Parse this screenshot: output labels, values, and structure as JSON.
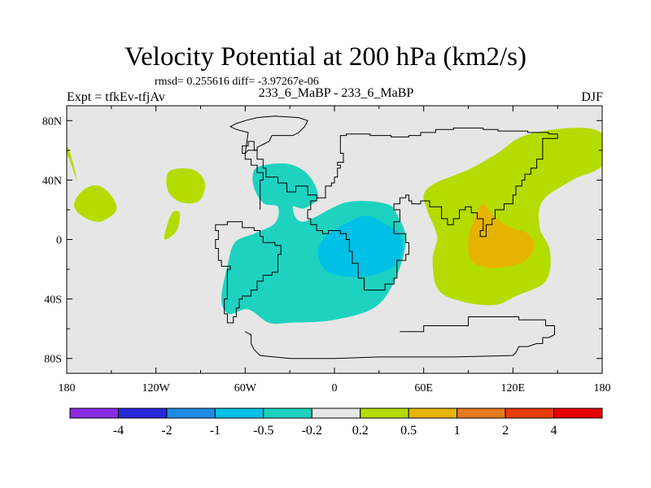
{
  "header": {
    "title": "Velocity Potential at 200 hPa (km2/s)",
    "stats": "rmsd= 0.255616 diff= -3.97267e-06",
    "expt": "Expt = tfkEv-tfjAv",
    "case": "233_6_MaBP - 233_6_MaBP",
    "season": "DJF"
  },
  "chart_data": {
    "type": "heatmap",
    "title": "Velocity Potential at 200 hPa (km2/s)",
    "xlabel": "",
    "ylabel": "",
    "x_range": [
      -180,
      180
    ],
    "y_range": [
      -90,
      90
    ],
    "x_ticks": [
      {
        "value": -180,
        "label": "180"
      },
      {
        "value": -120,
        "label": "120W"
      },
      {
        "value": -60,
        "label": "60W"
      },
      {
        "value": 0,
        "label": "0"
      },
      {
        "value": 60,
        "label": "60E"
      },
      {
        "value": 120,
        "label": "120E"
      },
      {
        "value": 180,
        "label": "180"
      }
    ],
    "y_ticks": [
      {
        "value": 80,
        "label": "80N"
      },
      {
        "value": 40,
        "label": "40N"
      },
      {
        "value": 0,
        "label": "0"
      },
      {
        "value": -40,
        "label": "40S"
      },
      {
        "value": -80,
        "label": "80S"
      }
    ],
    "background_color": "#e6e6e6",
    "colorbar": {
      "colors": [
        "#8b2be2",
        "#2828d8",
        "#1e8ce6",
        "#00c0e6",
        "#1ed2c0",
        "#e6e6e6",
        "#b4dc00",
        "#e6b400",
        "#e6781e",
        "#e63c0a",
        "#e60000"
      ],
      "labels": [
        "-4",
        "-2",
        "-1",
        "-0.5",
        "-0.2",
        "0.2",
        "0.5",
        "1",
        "2",
        "4"
      ]
    },
    "regions": [
      {
        "level": "0.2 to 0.5",
        "color": "#b4dc00",
        "points": [
          [
            -173,
            40
          ],
          [
            -179,
            62
          ],
          [
            -180,
            52
          ],
          [
            -180,
            58
          ]
        ]
      },
      {
        "level": "0.2 to 0.5",
        "color": "#b4dc00",
        "points": [
          [
            -168,
            34
          ],
          [
            -158,
            36
          ],
          [
            -149,
            28
          ],
          [
            -147,
            19
          ],
          [
            -158,
            12
          ],
          [
            -170,
            16
          ],
          [
            -175,
            24
          ]
        ]
      },
      {
        "level": "0.2 to 0.5",
        "color": "#b4dc00",
        "points": [
          [
            -111,
            46
          ],
          [
            -95,
            47
          ],
          [
            -87,
            38
          ],
          [
            -91,
            26
          ],
          [
            -103,
            25
          ],
          [
            -112,
            33
          ]
        ]
      },
      {
        "level": "0.2 to 0.5",
        "color": "#b4dc00",
        "points": [
          [
            -109,
            18
          ],
          [
            -104,
            18
          ],
          [
            -106,
            6
          ],
          [
            -114,
            0
          ],
          [
            -113,
            8
          ]
        ]
      },
      {
        "level": "0.2 to 0.5",
        "color": "#b4dc00",
        "points": [
          [
            128,
            70
          ],
          [
            160,
            75
          ],
          [
            180,
            71
          ],
          [
            180,
            50
          ],
          [
            160,
            40
          ],
          [
            140,
            26
          ],
          [
            138,
            8
          ],
          [
            145,
            -8
          ],
          [
            142,
            -28
          ],
          [
            122,
            -38
          ],
          [
            108,
            -44
          ],
          [
            87,
            -42
          ],
          [
            70,
            -34
          ],
          [
            66,
            -14
          ],
          [
            69,
            2
          ],
          [
            63,
            18
          ],
          [
            60,
            30
          ],
          [
            68,
            38
          ],
          [
            90,
            47
          ],
          [
            108,
            57
          ]
        ]
      },
      {
        "level": "0.5 to 1",
        "color": "#e6b400",
        "points": [
          [
            100,
            24
          ],
          [
            108,
            15
          ],
          [
            118,
            8
          ],
          [
            130,
            4
          ],
          [
            134,
            -6
          ],
          [
            125,
            -16
          ],
          [
            105,
            -19
          ],
          [
            92,
            -14
          ],
          [
            90,
            0
          ],
          [
            95,
            16
          ]
        ]
      },
      {
        "level": "-0.5 to -0.2",
        "color": "#1ed2c0",
        "points": [
          [
            -51,
            49
          ],
          [
            -32,
            51
          ],
          [
            -18,
            44
          ],
          [
            -11,
            29
          ],
          [
            -20,
            21
          ],
          [
            -28,
            22
          ],
          [
            -21,
            12
          ],
          [
            8,
            25
          ],
          [
            35,
            24
          ],
          [
            43,
            15
          ],
          [
            48,
            0
          ],
          [
            42,
            -24
          ],
          [
            28,
            -45
          ],
          [
            0,
            -54
          ],
          [
            -30,
            -56
          ],
          [
            -44,
            -56
          ],
          [
            -58,
            -47
          ],
          [
            -71,
            -50
          ],
          [
            -76,
            -40
          ],
          [
            -72,
            -18
          ],
          [
            -67,
            -2
          ],
          [
            -54,
            4
          ],
          [
            -40,
            11
          ],
          [
            -38,
            22
          ],
          [
            -47,
            24
          ],
          [
            -53,
            32
          ],
          [
            -55,
            42
          ]
        ]
      },
      {
        "level": "-1 to -0.5",
        "color": "#00c0e6",
        "points": [
          [
            10,
            12
          ],
          [
            22,
            16
          ],
          [
            35,
            10
          ],
          [
            45,
            2
          ],
          [
            44,
            -14
          ],
          [
            32,
            -22
          ],
          [
            15,
            -25
          ],
          [
            -4,
            -22
          ],
          [
            -11,
            -10
          ],
          [
            -6,
            2
          ]
        ]
      }
    ],
    "coastline": [
      [
        -50,
        20
      ],
      [
        -50,
        40
      ],
      [
        -48,
        40
      ],
      [
        -48,
        45
      ],
      [
        -52,
        45
      ],
      [
        -52,
        50
      ],
      [
        -56,
        50
      ],
      [
        -56,
        54
      ],
      [
        -60,
        54
      ],
      [
        -60,
        58
      ],
      [
        -62,
        58
      ],
      [
        -62,
        63
      ],
      [
        -58,
        63
      ],
      [
        -58,
        66
      ],
      [
        -54,
        66
      ],
      [
        -54,
        60
      ],
      [
        -52,
        60
      ],
      [
        -52,
        54
      ],
      [
        -48,
        54
      ],
      [
        -48,
        48
      ],
      [
        -46,
        48
      ],
      [
        -46,
        42
      ],
      [
        -38,
        42
      ],
      [
        -38,
        38
      ],
      [
        -32,
        38
      ],
      [
        -32,
        32
      ],
      [
        -26,
        32
      ],
      [
        -26,
        36
      ],
      [
        -18,
        36
      ],
      [
        -18,
        30
      ],
      [
        -12,
        30
      ],
      [
        -12,
        28
      ],
      [
        -6,
        28
      ],
      [
        -6,
        36
      ],
      [
        -2,
        36
      ],
      [
        -2,
        38
      ],
      [
        0,
        38
      ],
      [
        0,
        42
      ],
      [
        2,
        42
      ],
      [
        2,
        48
      ],
      [
        4,
        48
      ],
      [
        4,
        50
      ],
      [
        2,
        50
      ],
      [
        2,
        52
      ],
      [
        6,
        52
      ],
      [
        6,
        58
      ],
      [
        4,
        58
      ],
      [
        4,
        70
      ],
      [
        8,
        70
      ],
      [
        8,
        71
      ],
      [
        24,
        71
      ],
      [
        24,
        70
      ],
      [
        38,
        70
      ],
      [
        38,
        69
      ],
      [
        50,
        69
      ],
      [
        50,
        70
      ],
      [
        58,
        70
      ],
      [
        58,
        72
      ],
      [
        68,
        72
      ],
      [
        68,
        74
      ],
      [
        80,
        74
      ],
      [
        80,
        75
      ],
      [
        100,
        75
      ],
      [
        100,
        74
      ],
      [
        110,
        74
      ],
      [
        110,
        73
      ],
      [
        130,
        73
      ],
      [
        130,
        72
      ],
      [
        144,
        72
      ],
      [
        144,
        71
      ],
      [
        150,
        71
      ],
      [
        150,
        70
      ],
      [
        150,
        68
      ],
      [
        140,
        68
      ],
      [
        140,
        58
      ],
      [
        140,
        54
      ],
      [
        136,
        54
      ],
      [
        136,
        48
      ],
      [
        132,
        48
      ],
      [
        132,
        44
      ],
      [
        128,
        44
      ],
      [
        128,
        40
      ],
      [
        126,
        40
      ],
      [
        126,
        36
      ],
      [
        122,
        36
      ],
      [
        122,
        30
      ],
      [
        120,
        30
      ],
      [
        120,
        24
      ],
      [
        114,
        24
      ],
      [
        114,
        20
      ],
      [
        108,
        20
      ],
      [
        108,
        14
      ],
      [
        106,
        14
      ],
      [
        106,
        10
      ],
      [
        102,
        10
      ],
      [
        102,
        2
      ],
      [
        98,
        2
      ],
      [
        98,
        6
      ],
      [
        100,
        6
      ],
      [
        100,
        14
      ],
      [
        96,
        14
      ],
      [
        96,
        18
      ],
      [
        92,
        18
      ],
      [
        92,
        22
      ],
      [
        88,
        22
      ],
      [
        88,
        20
      ],
      [
        84,
        20
      ],
      [
        84,
        14
      ],
      [
        80,
        14
      ],
      [
        80,
        10
      ],
      [
        76,
        10
      ],
      [
        76,
        14
      ],
      [
        72,
        14
      ],
      [
        72,
        22
      ],
      [
        64,
        22
      ],
      [
        64,
        26
      ],
      [
        58,
        26
      ],
      [
        58,
        24
      ],
      [
        52,
        24
      ],
      [
        52,
        26
      ],
      [
        50,
        26
      ],
      [
        50,
        30
      ],
      [
        48,
        30
      ],
      [
        48,
        28
      ],
      [
        44,
        28
      ],
      [
        44,
        24
      ],
      [
        40,
        24
      ],
      [
        40,
        20
      ],
      [
        44,
        20
      ],
      [
        44,
        12
      ],
      [
        40,
        12
      ],
      [
        40,
        4
      ],
      [
        48,
        4
      ],
      [
        48,
        -2
      ],
      [
        50,
        -2
      ],
      [
        50,
        -4
      ],
      [
        50,
        -10
      ],
      [
        48,
        -10
      ],
      [
        48,
        -14
      ],
      [
        42,
        -14
      ],
      [
        42,
        -26
      ],
      [
        40,
        -26
      ],
      [
        40,
        -30
      ],
      [
        34,
        -30
      ],
      [
        34,
        -34
      ],
      [
        20,
        -34
      ],
      [
        20,
        -26
      ],
      [
        16,
        -26
      ],
      [
        16,
        -16
      ],
      [
        12,
        -16
      ],
      [
        12,
        -8
      ],
      [
        10,
        -8
      ],
      [
        10,
        0
      ],
      [
        8,
        0
      ],
      [
        8,
        4
      ],
      [
        4,
        4
      ],
      [
        4,
        6
      ],
      [
        -4,
        6
      ],
      [
        -4,
        4
      ],
      [
        -8,
        4
      ],
      [
        -8,
        6
      ],
      [
        -12,
        6
      ],
      [
        -12,
        10
      ],
      [
        -16,
        10
      ],
      [
        -16,
        14
      ],
      [
        -18,
        14
      ],
      [
        -18,
        20
      ],
      [
        -16,
        20
      ],
      [
        -16,
        26
      ],
      [
        -12,
        26
      ],
      [
        -12,
        30
      ]
    ],
    "south_america": [
      [
        -80,
        10
      ],
      [
        -72,
        10
      ],
      [
        -72,
        12
      ],
      [
        -62,
        12
      ],
      [
        -62,
        8
      ],
      [
        -54,
        8
      ],
      [
        -54,
        6
      ],
      [
        -50,
        6
      ],
      [
        -50,
        2
      ],
      [
        -48,
        2
      ],
      [
        -48,
        -2
      ],
      [
        -40,
        -2
      ],
      [
        -40,
        -4
      ],
      [
        -36,
        -4
      ],
      [
        -36,
        -10
      ],
      [
        -38,
        -10
      ],
      [
        -38,
        -22
      ],
      [
        -42,
        -22
      ],
      [
        -42,
        -24
      ],
      [
        -48,
        -24
      ],
      [
        -48,
        -28
      ],
      [
        -52,
        -28
      ],
      [
        -52,
        -34
      ],
      [
        -56,
        -34
      ],
      [
        -56,
        -38
      ],
      [
        -62,
        -38
      ],
      [
        -62,
        -40
      ],
      [
        -64,
        -40
      ],
      [
        -64,
        -46
      ],
      [
        -66,
        -46
      ],
      [
        -66,
        -52
      ],
      [
        -68,
        -52
      ],
      [
        -68,
        -56
      ],
      [
        -72,
        -56
      ],
      [
        -72,
        -50
      ],
      [
        -74,
        -50
      ],
      [
        -74,
        -40
      ],
      [
        -72,
        -40
      ],
      [
        -72,
        -20
      ],
      [
        -70,
        -20
      ],
      [
        -70,
        -18
      ],
      [
        -76,
        -18
      ],
      [
        -76,
        -14
      ],
      [
        -78,
        -14
      ],
      [
        -78,
        -6
      ],
      [
        -80,
        -6
      ],
      [
        -80,
        0
      ],
      [
        -78,
        0
      ],
      [
        -78,
        6
      ],
      [
        -80,
        6
      ],
      [
        -80,
        10
      ]
    ],
    "antarctica": [
      [
        -60,
        -62
      ],
      [
        -56,
        -64
      ],
      [
        -56,
        -70
      ],
      [
        -54,
        -74
      ],
      [
        -50,
        -78
      ],
      [
        -30,
        -80
      ],
      [
        0,
        -80
      ],
      [
        30,
        -79
      ],
      [
        80,
        -79
      ],
      [
        120,
        -78
      ],
      [
        122,
        -76
      ],
      [
        124,
        -72
      ],
      [
        130,
        -72
      ],
      [
        136,
        -70
      ],
      [
        140,
        -70
      ],
      [
        140,
        -66
      ],
      [
        144,
        -66
      ],
      [
        148,
        -64
      ],
      [
        148,
        -58
      ],
      [
        142,
        -58
      ],
      [
        142,
        -54
      ],
      [
        124,
        -54
      ],
      [
        124,
        -52
      ],
      [
        90,
        -52
      ],
      [
        90,
        -58
      ],
      [
        60,
        -58
      ],
      [
        60,
        -62
      ],
      [
        44,
        -62
      ]
    ],
    "greenland": [
      [
        -60,
        58
      ],
      [
        -58,
        60
      ],
      [
        -52,
        60
      ],
      [
        -52,
        62
      ],
      [
        -48,
        64
      ],
      [
        -44,
        66
      ],
      [
        -42,
        70
      ],
      [
        -28,
        70
      ],
      [
        -24,
        72
      ],
      [
        -20,
        76
      ],
      [
        -18,
        80
      ],
      [
        -24,
        82
      ],
      [
        -40,
        83
      ],
      [
        -52,
        82
      ],
      [
        -60,
        80
      ],
      [
        -66,
        78
      ],
      [
        -70,
        76
      ],
      [
        -66,
        74
      ],
      [
        -58,
        72
      ]
    ]
  }
}
